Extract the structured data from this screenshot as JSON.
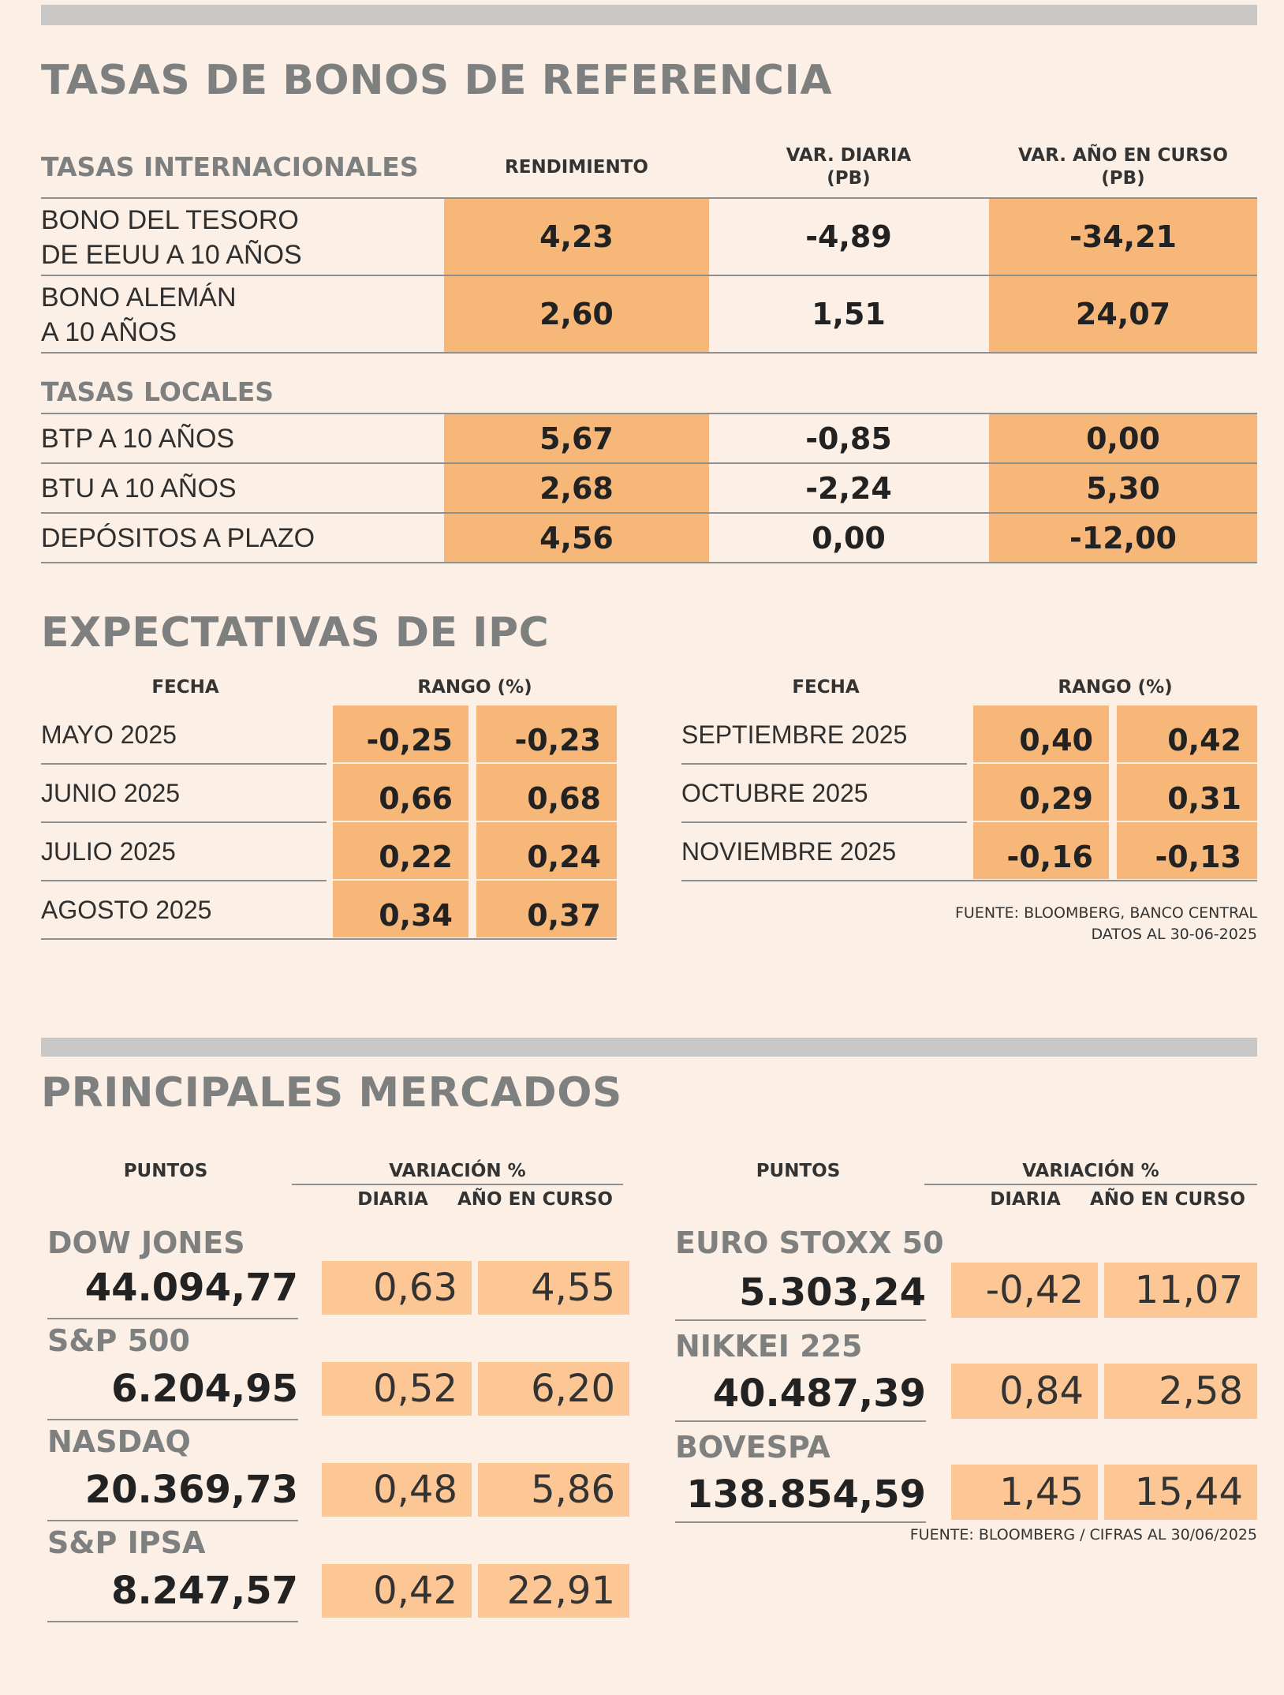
{
  "bonos": {
    "title": "TASAS DE BONOS DE REFERENCIA",
    "intl_header": "TASAS INTERNACIONALES",
    "col_rend": "RENDIMIENTO",
    "col_var_diaria": "VAR. DIARIA",
    "col_var_diaria_unit": "(PB)",
    "col_var_anio": "VAR. AÑO EN CURSO",
    "col_var_anio_unit": "(PB)",
    "intl_rows": [
      {
        "label_1": "BONO DEL TESORO",
        "label_2": "DE EEUU A 10 AÑOS",
        "rend": "4,23",
        "diaria": "-4,89",
        "anio": "-34,21"
      },
      {
        "label_1": "BONO ALEMÁN",
        "label_2": "A 10 AÑOS",
        "rend": "2,60",
        "diaria": "1,51",
        "anio": "24,07"
      }
    ],
    "local_header": "TASAS LOCALES",
    "local_rows": [
      {
        "label": "BTP A 10 AÑOS",
        "rend": "5,67",
        "diaria": "-0,85",
        "anio": "0,00"
      },
      {
        "label": "BTU A 10 AÑOS",
        "rend": "2,68",
        "diaria": "-2,24",
        "anio": "5,30"
      },
      {
        "label": "DEPÓSITOS A PLAZO",
        "rend": "4,56",
        "diaria": "0,00",
        "anio": "-12,00"
      }
    ]
  },
  "ipc": {
    "title": "EXPECTATIVAS DE IPC",
    "col_fecha": "FECHA",
    "col_rango": "RANGO (%)",
    "left": [
      {
        "date": "MAYO 2025",
        "low": "-0,25",
        "high": "-0,23"
      },
      {
        "date": "JUNIO 2025",
        "low": "0,66",
        "high": "0,68"
      },
      {
        "date": "JULIO 2025",
        "low": "0,22",
        "high": "0,24"
      },
      {
        "date": "AGOSTO 2025",
        "low": "0,34",
        "high": "0,37"
      }
    ],
    "right": [
      {
        "date": "SEPTIEMBRE 2025",
        "low": "0,40",
        "high": "0,42"
      },
      {
        "date": "OCTUBRE 2025",
        "low": "0,29",
        "high": "0,31"
      },
      {
        "date": "NOVIEMBRE 2025",
        "low": "-0,16",
        "high": "-0,13"
      }
    ],
    "source_1": "FUENTE: BLOOMBERG, BANCO CENTRAL",
    "source_2": "DATOS AL 30-06-2025"
  },
  "mercados": {
    "title": "PRINCIPALES MERCADOS",
    "col_puntos": "PUNTOS",
    "col_variacion": "VARIACIÓN %",
    "col_diaria": "DIARIA",
    "col_anio": "AÑO EN CURSO",
    "left": [
      {
        "name": "DOW JONES",
        "points": "44.094,77",
        "diaria": "0,63",
        "anio": "4,55"
      },
      {
        "name": "S&P 500",
        "points": "6.204,95",
        "diaria": "0,52",
        "anio": "6,20"
      },
      {
        "name": "NASDAQ",
        "points": "20.369,73",
        "diaria": "0,48",
        "anio": "5,86"
      },
      {
        "name": "S&P IPSA",
        "points": "8.247,57",
        "diaria": "0,42",
        "anio": "22,91"
      }
    ],
    "right": [
      {
        "name": "EURO STOXX 50",
        "points": "5.303,24",
        "diaria": "-0,42",
        "anio": "11,07"
      },
      {
        "name": "NIKKEI 225",
        "points": "40.487,39",
        "diaria": "0,84",
        "anio": "2,58"
      },
      {
        "name": "BOVESPA",
        "points": "138.854,59",
        "diaria": "1,45",
        "anio": "15,44"
      }
    ],
    "source": "FUENTE: BLOOMBERG  / CIFRAS AL 30/06/2025"
  }
}
